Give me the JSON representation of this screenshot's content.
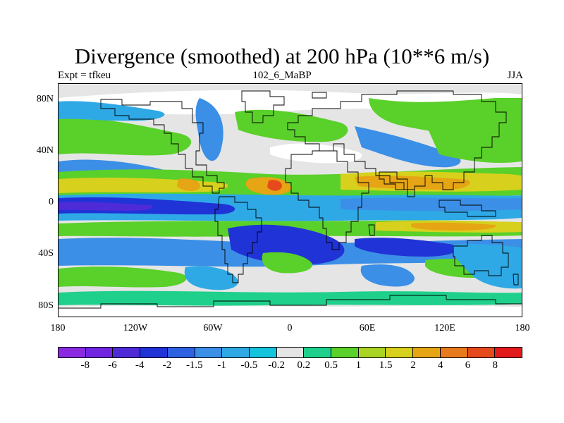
{
  "title": "Divergence (smoothed) at 200 hPa (10**6 m/s)",
  "subtitle_left": "Expt = tfkeu",
  "subtitle_center": "102_6_MaBP",
  "subtitle_right": "JJA",
  "y_ticks": [
    "80N",
    "40N",
    "0",
    "40S",
    "80S"
  ],
  "x_ticks": [
    "180",
    "120W",
    "60W",
    "0",
    "60E",
    "120E",
    "180"
  ],
  "legend": {
    "colors": [
      "#8a2be2",
      "#7026e0",
      "#4f2bd8",
      "#2033d6",
      "#2d63e0",
      "#3c8fe6",
      "#2ea9e6",
      "#14c3dc",
      "#e5e5e5",
      "#1ed08b",
      "#5ad02a",
      "#a9d424",
      "#d7d01c",
      "#e5a514",
      "#e77a1c",
      "#e64a1c",
      "#e31a1c"
    ],
    "labels": [
      "-8",
      "-6",
      "-4",
      "-2",
      "-1.5",
      "-1",
      "-0.5",
      "-0.2",
      "0.2",
      "0.5",
      "1",
      "1.5",
      "2",
      "4",
      "6",
      "8"
    ]
  },
  "map_palette": {
    "neutral": "#e5e5e5",
    "white": "#ffffff",
    "green": "#5ad02a",
    "teal": "#1ed08b",
    "lightgreen": "#a9d424",
    "yellow": "#d7d01c",
    "orange": "#e5a514",
    "red": "#e64a1c",
    "cyan": "#2ea9e6",
    "blue": "#3c8fe6",
    "darkblue": "#2033d6",
    "violet": "#4f2bd8"
  }
}
